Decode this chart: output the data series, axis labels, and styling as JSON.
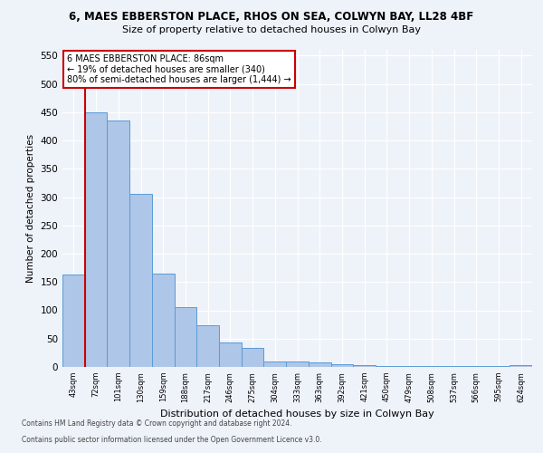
{
  "title1": "6, MAES EBBERSTON PLACE, RHOS ON SEA, COLWYN BAY, LL28 4BF",
  "title2": "Size of property relative to detached houses in Colwyn Bay",
  "xlabel": "Distribution of detached houses by size in Colwyn Bay",
  "ylabel": "Number of detached properties",
  "bar_labels": [
    "43sqm",
    "72sqm",
    "101sqm",
    "130sqm",
    "159sqm",
    "188sqm",
    "217sqm",
    "246sqm",
    "275sqm",
    "304sqm",
    "333sqm",
    "363sqm",
    "392sqm",
    "421sqm",
    "450sqm",
    "479sqm",
    "508sqm",
    "537sqm",
    "566sqm",
    "595sqm",
    "624sqm"
  ],
  "bar_values": [
    163,
    450,
    435,
    305,
    165,
    105,
    73,
    43,
    33,
    10,
    10,
    8,
    5,
    3,
    2,
    2,
    1,
    1,
    1,
    1,
    4
  ],
  "bar_color": "#aec6e8",
  "bar_edge_color": "#5b9bd5",
  "annotation_line1": "6 MAES EBBERSTON PLACE: 86sqm",
  "annotation_line2": "← 19% of detached houses are smaller (340)",
  "annotation_line3": "80% of semi-detached houses are larger (1,444) →",
  "red_line_color": "#cc0000",
  "annotation_box_color": "#ffffff",
  "annotation_box_edge": "#cc0000",
  "ylim": [
    0,
    560
  ],
  "yticks": [
    0,
    50,
    100,
    150,
    200,
    250,
    300,
    350,
    400,
    450,
    500,
    550
  ],
  "footer1": "Contains HM Land Registry data © Crown copyright and database right 2024.",
  "footer2": "Contains public sector information licensed under the Open Government Licence v3.0.",
  "background_color": "#eef2f9",
  "plot_bg_color": "#eef2f9",
  "red_line_x": 1.0
}
